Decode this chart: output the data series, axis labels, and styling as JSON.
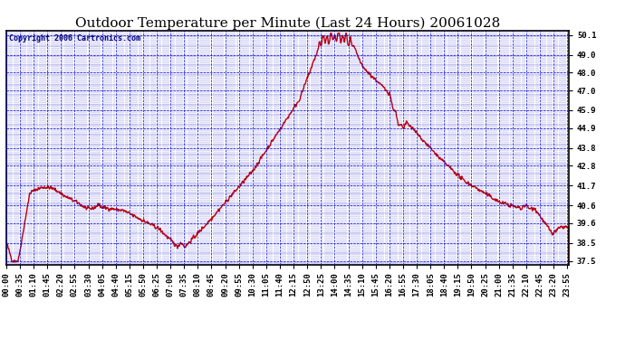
{
  "title": "Outdoor Temperature per Minute (Last 24 Hours) 20061028",
  "copyright_text": "Copyright 2006 Cartronics.com",
  "title_color": "#000000",
  "background_color": "#ffffff",
  "plot_bg_color": "#ffffff",
  "line_color": "#cc0000",
  "grid_major_color": "#0000cc",
  "grid_minor_color": "#0000cc",
  "border_color": "#000000",
  "ytick_labels": [
    "37.5",
    "38.5",
    "39.6",
    "40.6",
    "41.7",
    "42.8",
    "43.8",
    "44.9",
    "45.9",
    "47.0",
    "48.0",
    "49.0",
    "50.1"
  ],
  "ytick_values": [
    37.5,
    38.5,
    39.6,
    40.6,
    41.7,
    42.8,
    43.8,
    44.9,
    45.9,
    47.0,
    48.0,
    49.0,
    50.1
  ],
  "ylim": [
    37.3,
    50.35
  ],
  "xtick_labels": [
    "00:00",
    "00:35",
    "01:10",
    "01:45",
    "02:20",
    "02:55",
    "03:30",
    "04:05",
    "04:40",
    "05:15",
    "05:50",
    "06:25",
    "07:00",
    "07:35",
    "08:10",
    "08:45",
    "09:20",
    "09:55",
    "10:30",
    "11:05",
    "11:40",
    "12:15",
    "12:50",
    "13:25",
    "14:00",
    "14:35",
    "15:10",
    "15:45",
    "16:20",
    "16:55",
    "17:30",
    "18:05",
    "18:40",
    "19:15",
    "19:50",
    "20:25",
    "21:00",
    "21:35",
    "22:10",
    "22:45",
    "23:20",
    "23:55"
  ],
  "line_width": 1.0,
  "font_size_title": 11,
  "font_size_tick": 6.5,
  "font_size_copyright": 6,
  "copyright_color": "#000080"
}
